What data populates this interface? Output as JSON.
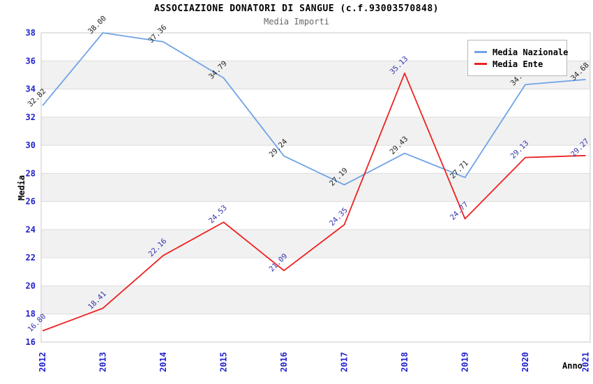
{
  "chart_data": {
    "type": "line",
    "title": "ASSOCIAZIONE DONATORI DI SANGUE (c.f.93003570848)",
    "subtitle": "Media Importi",
    "xlabel": "Anno",
    "ylabel": "Media",
    "categories": [
      "2012",
      "2013",
      "2014",
      "2015",
      "2016",
      "2017",
      "2018",
      "2019",
      "2020",
      "2021"
    ],
    "series": [
      {
        "name": "Media Nazionale",
        "color": "#6fa3e6",
        "label_color": "#222222",
        "values": [
          32.82,
          38.0,
          37.36,
          34.79,
          29.24,
          27.19,
          29.43,
          27.71,
          34.32,
          34.68
        ]
      },
      {
        "name": "Media Ente",
        "color": "#ee2222",
        "label_color": "#3333aa",
        "values": [
          16.8,
          18.41,
          22.16,
          24.53,
          21.09,
          24.35,
          35.13,
          24.77,
          29.13,
          29.27
        ]
      }
    ],
    "ylim": [
      16,
      38
    ],
    "ytick_step": 2,
    "y_ticks": [
      "16",
      "18",
      "20",
      "22",
      "24",
      "26",
      "28",
      "30",
      "32",
      "34",
      "36",
      "38"
    ],
    "grid": true,
    "band_colors": [
      "#ffffff",
      "#f1f1f1"
    ],
    "gridline_color": "#dcdcdc",
    "border_color": "#c8c8c8",
    "tick_color": "#2222cc",
    "legend_position": "top-right"
  }
}
